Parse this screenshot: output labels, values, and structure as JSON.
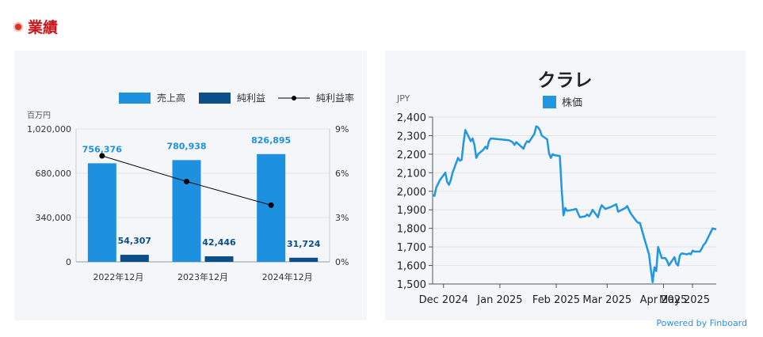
{
  "section": {
    "title": "業績"
  },
  "footer": {
    "powered_by": "Powered by Finboard"
  },
  "chart_data": [
    {
      "type": "bar",
      "unit_label": "百万円",
      "categories": [
        "2022年12月",
        "2023年12月",
        "2024年12月"
      ],
      "series": [
        {
          "name": "売上高",
          "values": [
            756376,
            780938,
            826895
          ],
          "labels": [
            "756,376",
            "780,938",
            "826,895"
          ],
          "color": "#1e90e0"
        },
        {
          "name": "純利益",
          "values": [
            54307,
            42446,
            31724
          ],
          "labels": [
            "54,307",
            "42,446",
            "31,724"
          ],
          "color": "#0b4f8a"
        },
        {
          "name": "純利益率",
          "type": "line",
          "axis": "right",
          "values": [
            7.18,
            5.44,
            3.84
          ],
          "color": "#000000"
        }
      ],
      "ylim": [
        0,
        1020000
      ],
      "yticks": [
        "0",
        "340,000",
        "680,000",
        "1,020,000"
      ],
      "y2lim": [
        0,
        9
      ],
      "y2ticks": [
        "0%",
        "3%",
        "6%",
        "9%"
      ],
      "legend_position": "top-right"
    },
    {
      "type": "line",
      "title": "クラレ",
      "ylabel": "JPY",
      "series": [
        {
          "name": "株価",
          "color": "#2196e3",
          "points": [
            [
              "2024-11-25",
              1980
            ],
            [
              "2024-11-26",
              1975
            ],
            [
              "2024-11-27",
              2020
            ],
            [
              "2024-11-29",
              2060
            ],
            [
              "2024-12-02",
              2100
            ],
            [
              "2024-12-03",
              2050
            ],
            [
              "2024-12-04",
              2035
            ],
            [
              "2024-12-05",
              2060
            ],
            [
              "2024-12-06",
              2100
            ],
            [
              "2024-12-09",
              2180
            ],
            [
              "2024-12-10",
              2165
            ],
            [
              "2024-12-11",
              2170
            ],
            [
              "2024-12-12",
              2260
            ],
            [
              "2024-12-13",
              2330
            ],
            [
              "2024-12-16",
              2270
            ],
            [
              "2024-12-17",
              2285
            ],
            [
              "2024-12-18",
              2250
            ],
            [
              "2024-12-19",
              2180
            ],
            [
              "2024-12-20",
              2200
            ],
            [
              "2024-12-23",
              2225
            ],
            [
              "2024-12-24",
              2240
            ],
            [
              "2024-12-25",
              2230
            ],
            [
              "2024-12-26",
              2270
            ],
            [
              "2024-12-27",
              2285
            ],
            [
              "2025-01-06",
              2275
            ],
            [
              "2025-01-07",
              2270
            ],
            [
              "2025-01-08",
              2265
            ],
            [
              "2025-01-09",
              2250
            ],
            [
              "2025-01-10",
              2265
            ],
            [
              "2025-01-14",
              2230
            ],
            [
              "2025-01-15",
              2255
            ],
            [
              "2025-01-16",
              2270
            ],
            [
              "2025-01-17",
              2265
            ],
            [
              "2025-01-20",
              2310
            ],
            [
              "2025-01-21",
              2350
            ],
            [
              "2025-01-22",
              2345
            ],
            [
              "2025-01-23",
              2330
            ],
            [
              "2025-01-24",
              2300
            ],
            [
              "2025-01-27",
              2280
            ],
            [
              "2025-01-28",
              2205
            ],
            [
              "2025-01-29",
              2180
            ],
            [
              "2025-01-30",
              2200
            ],
            [
              "2025-01-31",
              2195
            ],
            [
              "2025-02-03",
              2190
            ],
            [
              "2025-02-04",
              2010
            ],
            [
              "2025-02-05",
              1870
            ],
            [
              "2025-02-06",
              1910
            ],
            [
              "2025-02-07",
              1895
            ],
            [
              "2025-02-10",
              1900
            ],
            [
              "2025-02-12",
              1905
            ],
            [
              "2025-02-13",
              1880
            ],
            [
              "2025-02-14",
              1860
            ],
            [
              "2025-02-17",
              1865
            ],
            [
              "2025-02-18",
              1875
            ],
            [
              "2025-02-19",
              1865
            ],
            [
              "2025-02-20",
              1880
            ],
            [
              "2025-02-21",
              1900
            ],
            [
              "2025-02-24",
              1860
            ],
            [
              "2025-02-25",
              1900
            ],
            [
              "2025-02-26",
              1925
            ],
            [
              "2025-02-27",
              1915
            ],
            [
              "2025-02-28",
              1905
            ],
            [
              "2025-03-03",
              1915
            ],
            [
              "2025-03-04",
              1920
            ],
            [
              "2025-03-05",
              1925
            ],
            [
              "2025-03-06",
              1930
            ],
            [
              "2025-03-07",
              1890
            ],
            [
              "2025-03-10",
              1905
            ],
            [
              "2025-03-11",
              1910
            ],
            [
              "2025-03-12",
              1920
            ],
            [
              "2025-03-13",
              1900
            ],
            [
              "2025-03-14",
              1880
            ],
            [
              "2025-03-17",
              1840
            ],
            [
              "2025-03-18",
              1830
            ],
            [
              "2025-03-19",
              1830
            ],
            [
              "2025-03-21",
              1760
            ],
            [
              "2025-03-24",
              1660
            ],
            [
              "2025-03-25",
              1580
            ],
            [
              "2025-03-26",
              1510
            ],
            [
              "2025-03-27",
              1590
            ],
            [
              "2025-03-28",
              1570
            ],
            [
              "2025-03-29",
              1700
            ],
            [
              "2025-03-31",
              1640
            ],
            [
              "2025-04-01",
              1640
            ],
            [
              "2025-04-02",
              1640
            ],
            [
              "2025-04-03",
              1625
            ],
            [
              "2025-04-04",
              1600
            ],
            [
              "2025-04-07",
              1645
            ],
            [
              "2025-04-08",
              1610
            ],
            [
              "2025-04-09",
              1600
            ],
            [
              "2025-04-10",
              1655
            ],
            [
              "2025-04-11",
              1665
            ],
            [
              "2025-04-14",
              1660
            ],
            [
              "2025-04-15",
              1665
            ],
            [
              "2025-04-16",
              1660
            ],
            [
              "2025-04-17",
              1680
            ],
            [
              "2025-04-18",
              1675
            ],
            [
              "2025-04-21",
              1675
            ],
            [
              "2025-04-22",
              1690
            ],
            [
              "2025-04-23",
              1710
            ],
            [
              "2025-04-24",
              1720
            ],
            [
              "2025-04-25",
              1740
            ],
            [
              "2025-04-28",
              1800
            ],
            [
              "2025-04-30",
              1795
            ]
          ]
        }
      ],
      "ylim": [
        1500,
        2400
      ],
      "yticks": [
        "1,500",
        "1,600",
        "1,700",
        "1,800",
        "1,900",
        "2,000",
        "2,100",
        "2,200",
        "2,300",
        "2,400"
      ],
      "xlim": [
        "2024-11-25",
        "2025-04-30"
      ],
      "xticks": [
        {
          "date": "2024-12-01",
          "label": "Dec 2024"
        },
        {
          "date": "2025-01-01",
          "label": "Jan 2025"
        },
        {
          "date": "2025-02-01",
          "label": "Feb 2025"
        },
        {
          "date": "2025-03-01",
          "label": "Mar 2025"
        },
        {
          "date": "2025-04-01",
          "label": "Apr 2025"
        },
        {
          "date": "2025-05-01",
          "label": "May 2025"
        }
      ],
      "grid": true,
      "legend_position": "top-center"
    }
  ]
}
